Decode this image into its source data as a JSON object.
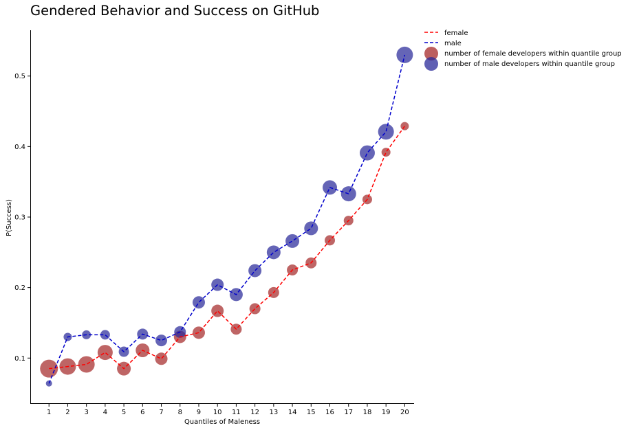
{
  "chart_data": {
    "type": "scatter",
    "title": "Gendered Behavior and Success on GitHub",
    "xlabel": "Quantiles of Maleness",
    "ylabel": "P(Success)",
    "x": [
      1,
      2,
      3,
      4,
      5,
      6,
      7,
      8,
      9,
      10,
      11,
      12,
      13,
      14,
      15,
      16,
      17,
      18,
      19,
      20
    ],
    "xlim": [
      0.0,
      20.5
    ],
    "ylim": [
      0.035,
      0.565
    ],
    "yticks": [
      0.1,
      0.2,
      0.3,
      0.4,
      0.5
    ],
    "ytick_labels": [
      "0.1",
      "0.2",
      "0.3",
      "0.4",
      "0.5"
    ],
    "grid": false,
    "legend_position": "outside-top-right",
    "series": [
      {
        "name": "female",
        "line_style": "dashed",
        "color": "#ff0000",
        "marker_color": "#a52a2a",
        "marker_legend": "number of female developers within quantile group",
        "values": [
          0.085,
          0.088,
          0.091,
          0.108,
          0.085,
          0.111,
          0.099,
          0.13,
          0.136,
          0.167,
          0.141,
          0.17,
          0.193,
          0.225,
          0.235,
          0.267,
          0.295,
          0.325,
          0.392,
          0.429
        ],
        "sizes": [
          13,
          12,
          12,
          11,
          10,
          10,
          9,
          9,
          9,
          9,
          8,
          8,
          8,
          8,
          8,
          7.5,
          7,
          7,
          6.5,
          6
        ]
      },
      {
        "name": "male",
        "line_style": "dashed",
        "color": "#0000cc",
        "marker_color": "#2a2a9a",
        "marker_legend": "number of male developers within quantile group",
        "values": [
          0.064,
          0.13,
          0.133,
          0.133,
          0.109,
          0.134,
          0.125,
          0.137,
          0.179,
          0.204,
          0.19,
          0.224,
          0.25,
          0.266,
          0.284,
          0.342,
          0.333,
          0.391,
          0.421,
          0.53
        ],
        "sizes": [
          4.5,
          6,
          6.5,
          7,
          7.5,
          8,
          8.5,
          8.5,
          9,
          9,
          9.5,
          9.5,
          10,
          10,
          10,
          10.5,
          11,
          11,
          11.5,
          12
        ]
      }
    ]
  }
}
